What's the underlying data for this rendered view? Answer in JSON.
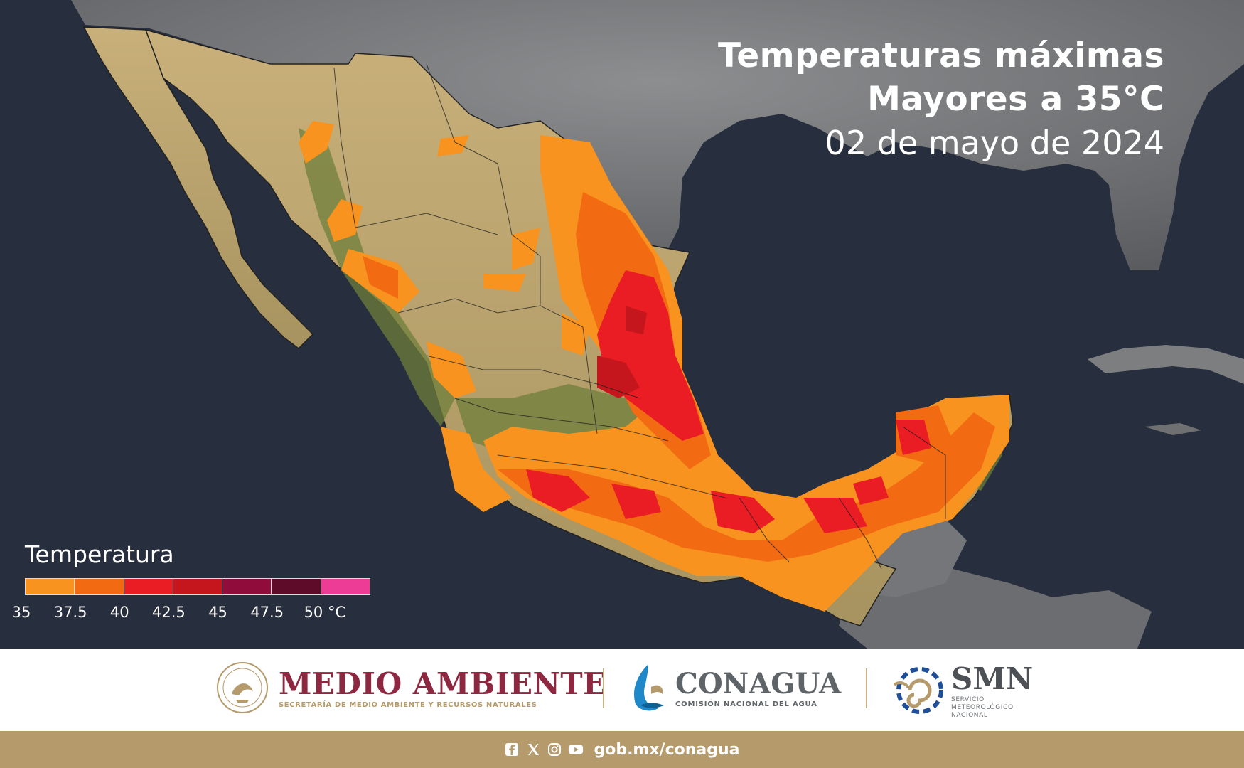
{
  "title": {
    "line1": "Temperaturas máximas",
    "line2": "Mayores a 35°C",
    "date": "02 de mayo de 2024"
  },
  "legend": {
    "title": "Temperatura",
    "ticks": [
      "35",
      "37.5",
      "40",
      "42.5",
      "45",
      "47.5",
      "50 °C"
    ],
    "colors": [
      "#f7931e",
      "#f26a12",
      "#ea1c24",
      "#c4161c",
      "#900c3a",
      "#5e0b2a",
      "#ec3c96"
    ]
  },
  "logos": {
    "medio_ambiente": {
      "name": "MEDIO AMBIENTE",
      "subtitle": "SECRETARÍA DE MEDIO AMBIENTE Y RECURSOS NATURALES"
    },
    "conagua": {
      "name": "CONAGUA",
      "subtitle": "COMISIÓN NACIONAL DEL AGUA"
    },
    "smn": {
      "name": "SMN",
      "subtitle_lines": [
        "SERVICIO",
        "METEOROLÓGICO",
        "NACIONAL"
      ]
    }
  },
  "footer": {
    "url": "gob.mx/conagua",
    "social_icons": [
      "facebook-icon",
      "x-icon",
      "instagram-icon",
      "youtube-icon"
    ],
    "color": "#b59a6b"
  },
  "colors": {
    "ocean": "#262d3d",
    "land_usa": "#7b7c7e",
    "brand_wine": "#8e2740",
    "brand_gold": "#b59a6b"
  }
}
